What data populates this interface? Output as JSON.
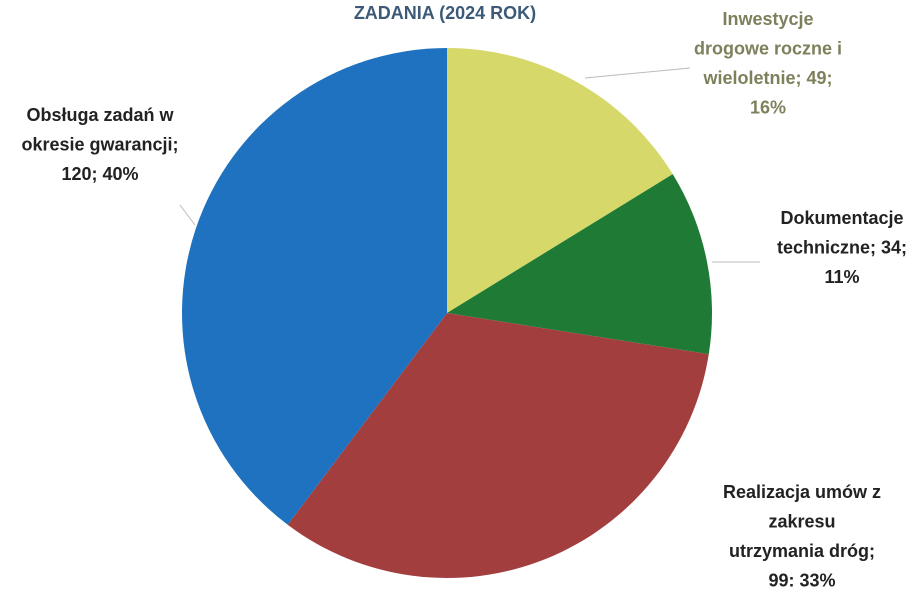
{
  "chart_data": {
    "type": "pie",
    "title": "ZADANIA (2024 ROK)",
    "values": [
      49,
      34,
      99,
      120
    ],
    "colors": [
      "#d6d96a",
      "#1f7a36",
      "#a33e3e",
      "#1f72bf"
    ],
    "value_labels": [
      [
        "Inwestycje",
        "drogowe roczne i",
        "wieloletnie; 49;",
        "16%"
      ],
      [
        "Dokumentacje",
        "techniczne; 34;",
        "11%"
      ],
      [
        "Realizacja umów z",
        "zakresu",
        "utrzymania dróg;",
        "99: 33%"
      ],
      [
        "Obsługa zadań w",
        "okresie gwarancji;",
        "120; 40%"
      ]
    ]
  }
}
